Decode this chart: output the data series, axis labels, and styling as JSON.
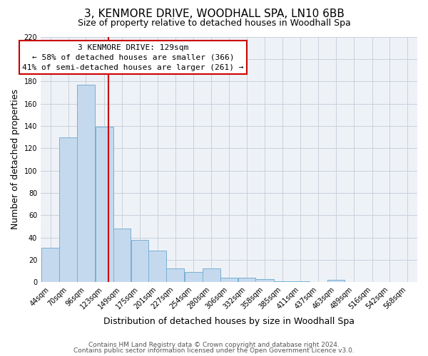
{
  "title": "3, KENMORE DRIVE, WOODHALL SPA, LN10 6BB",
  "subtitle": "Size of property relative to detached houses in Woodhall Spa",
  "xlabel": "Distribution of detached houses by size in Woodhall Spa",
  "ylabel": "Number of detached properties",
  "bar_values": [
    31,
    130,
    177,
    139,
    48,
    38,
    28,
    12,
    9,
    12,
    4,
    4,
    3,
    1,
    1,
    0,
    2
  ],
  "bar_labels": [
    "44sqm",
    "70sqm",
    "96sqm",
    "123sqm",
    "149sqm",
    "175sqm",
    "201sqm",
    "227sqm",
    "254sqm",
    "280sqm",
    "306sqm",
    "332sqm",
    "358sqm",
    "385sqm",
    "411sqm",
    "437sqm",
    "463sqm",
    "489sqm",
    "516sqm",
    "542sqm",
    "568sqm"
  ],
  "tick_positions": [
    44,
    70,
    96,
    123,
    149,
    175,
    201,
    227,
    254,
    280,
    306,
    332,
    358,
    385,
    411,
    437,
    463,
    489,
    516,
    542,
    568
  ],
  "bar_color": "#c5d9ee",
  "bar_edge_color": "#7aafd4",
  "vline_x": 129,
  "vline_color": "#cc0000",
  "ylim": [
    0,
    220
  ],
  "yticks": [
    0,
    20,
    40,
    60,
    80,
    100,
    120,
    140,
    160,
    180,
    200,
    220
  ],
  "annotation_title": "3 KENMORE DRIVE: 129sqm",
  "annotation_line1": "← 58% of detached houses are smaller (366)",
  "annotation_line2": "41% of semi-detached houses are larger (261) →",
  "annotation_box_color": "#ffffff",
  "annotation_box_edge_color": "#cc0000",
  "footer1": "Contains HM Land Registry data © Crown copyright and database right 2024.",
  "footer2": "Contains public sector information licensed under the Open Government Licence v3.0.",
  "background_color": "#eef2f7",
  "grid_color": "#c8d0dc",
  "title_fontsize": 11,
  "subtitle_fontsize": 9,
  "axis_label_fontsize": 9,
  "tick_fontsize": 7,
  "annotation_fontsize": 8,
  "footer_fontsize": 6.5
}
